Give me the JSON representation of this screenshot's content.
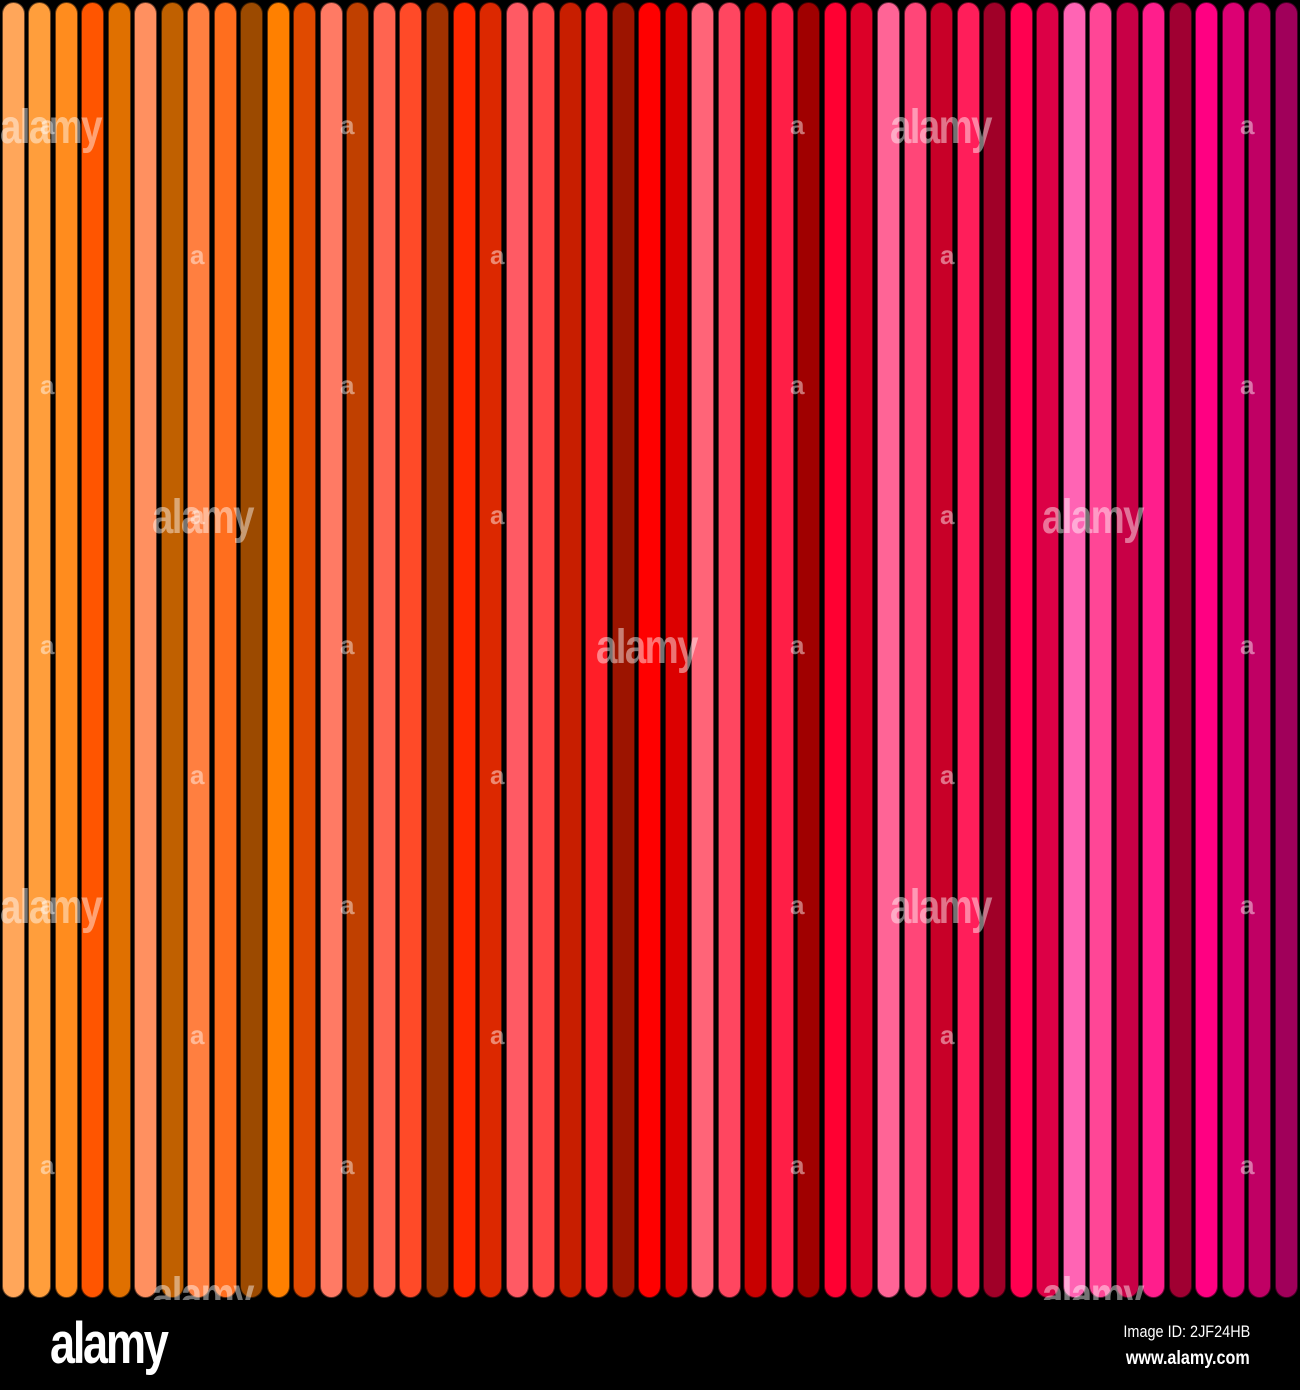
{
  "stripes": {
    "colors": [
      "#FFA65A",
      "#FF9E3C",
      "#FF8C1E",
      "#FF5500",
      "#E07000",
      "#FF9060",
      "#C06000",
      "#FF7F40",
      "#FF6E1E",
      "#9C4A00",
      "#FF8000",
      "#E04A00",
      "#FF7A64",
      "#C04000",
      "#FF6450",
      "#FF4A28",
      "#A03200",
      "#FF2800",
      "#DC2800",
      "#FF5A64",
      "#FF4646",
      "#C81E00",
      "#FF1E28",
      "#9C1400",
      "#FF0000",
      "#DC0000",
      "#FF6478",
      "#FF4660",
      "#C80000",
      "#FF1E46",
      "#A00000",
      "#FF0032",
      "#DC0028",
      "#FF6496",
      "#FF4678",
      "#C80028",
      "#FF1E5A",
      "#A00028",
      "#FF0050",
      "#DC0046",
      "#FF64B4",
      "#FF4696",
      "#C80046",
      "#FF1E8C",
      "#A00032",
      "#FF0082",
      "#DC0073",
      "#C00064",
      "#A0005A"
    ],
    "background": "#000000"
  },
  "watermark": {
    "text": "alamy",
    "small_text": "a"
  },
  "footer": {
    "logo": "alamy",
    "image_id": "Image ID: 2JF24HB",
    "website": "www.alamy.com"
  }
}
